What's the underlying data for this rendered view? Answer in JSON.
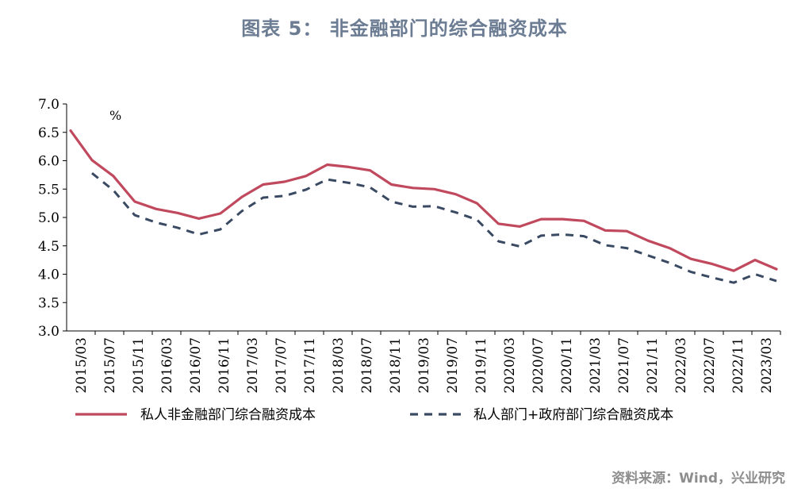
{
  "title": "图表 5：  非金融部门的综合融资成本",
  "source": "资料来源：Wind，兴业研究",
  "chart_data": {
    "type": "line",
    "unit_label": "%",
    "ylim": [
      3.0,
      7.0
    ],
    "yticks": [
      "7.0",
      "6.5",
      "6.0",
      "5.5",
      "5.0",
      "4.5",
      "4.0",
      "3.5",
      "3.0"
    ],
    "xtick_labels": [
      "2015/03",
      "2015/07",
      "2015/11",
      "2016/03",
      "2016/07",
      "2016/11",
      "2017/03",
      "2017/07",
      "2017/11",
      "2018/03",
      "2018/07",
      "2018/11",
      "2019/03",
      "2019/07",
      "2019/11",
      "2020/03",
      "2020/07",
      "2020/11",
      "2021/03",
      "2021/07",
      "2021/11",
      "2022/03",
      "2022/07",
      "2022/11",
      "2023/03"
    ],
    "x": [
      "2015/03",
      "2015/06",
      "2015/09",
      "2015/12",
      "2016/03",
      "2016/06",
      "2016/09",
      "2016/12",
      "2017/03",
      "2017/06",
      "2017/09",
      "2017/12",
      "2018/03",
      "2018/06",
      "2018/09",
      "2018/12",
      "2019/03",
      "2019/06",
      "2019/09",
      "2019/12",
      "2020/03",
      "2020/06",
      "2020/09",
      "2020/12",
      "2021/03",
      "2021/06",
      "2021/09",
      "2021/12",
      "2022/03",
      "2022/06",
      "2022/09",
      "2022/12",
      "2023/03",
      "2023/06"
    ],
    "series": [
      {
        "name": "私人非金融部门综合融资成本",
        "color": "#c0495e",
        "style": "solid",
        "values": [
          6.53,
          6.01,
          5.73,
          5.28,
          5.15,
          5.08,
          4.98,
          5.07,
          5.36,
          5.58,
          5.63,
          5.73,
          5.93,
          5.89,
          5.83,
          5.58,
          5.52,
          5.5,
          5.41,
          5.25,
          4.89,
          4.84,
          4.97,
          4.97,
          4.94,
          4.77,
          4.76,
          4.59,
          4.46,
          4.27,
          4.18,
          4.06,
          4.25,
          4.09
        ]
      },
      {
        "name": "私人部门+政府部门综合融资成本",
        "color": "#3a4a63",
        "style": "dashed",
        "values": [
          null,
          5.78,
          5.48,
          5.04,
          4.91,
          4.82,
          4.7,
          4.79,
          5.11,
          5.35,
          5.38,
          5.49,
          5.67,
          5.61,
          5.53,
          5.28,
          5.19,
          5.2,
          5.09,
          4.96,
          4.58,
          4.49,
          4.68,
          4.7,
          4.67,
          4.51,
          4.46,
          4.33,
          4.2,
          4.04,
          3.94,
          3.85,
          4.0,
          3.88
        ]
      }
    ]
  }
}
